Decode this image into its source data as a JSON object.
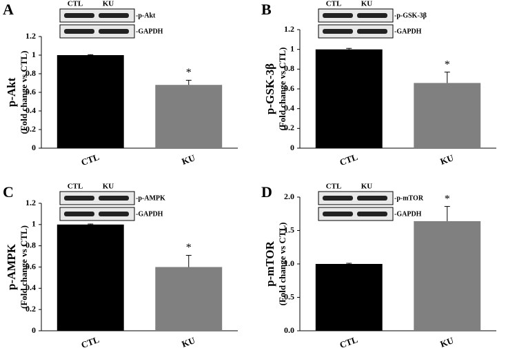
{
  "chart_data": [
    {
      "type": "bar",
      "panel": "A",
      "ylabel": "p-Akt",
      "ylabel_sub": "(Fold change vs CTL)",
      "categories": [
        "CTL",
        "KU"
      ],
      "values": [
        1.0,
        0.68
      ],
      "errors": [
        0.005,
        0.05
      ],
      "colors": [
        "#000000",
        "#808080"
      ],
      "ylim": [
        0,
        1.2
      ],
      "yticks": [
        0,
        0.2,
        0.4,
        0.6,
        0.8,
        1,
        1.2
      ],
      "annotations": [
        {
          "text": "*",
          "x": "KU"
        }
      ],
      "blot": {
        "lanes": [
          "CTL",
          "KU"
        ],
        "bands": [
          "-p-Akt",
          "-GAPDH"
        ]
      }
    },
    {
      "type": "bar",
      "panel": "B",
      "ylabel": "p-GSK-3β",
      "ylabel_sub": "(Fold change vs CTL)",
      "categories": [
        "CTL",
        "KU"
      ],
      "values": [
        1.0,
        0.66
      ],
      "errors": [
        0.01,
        0.11
      ],
      "colors": [
        "#000000",
        "#808080"
      ],
      "ylim": [
        0,
        1.2
      ],
      "yticks": [
        0,
        0.2,
        0.4,
        0.6,
        0.8,
        1,
        1.2
      ],
      "annotations": [
        {
          "text": "*",
          "x": "KU"
        }
      ],
      "blot": {
        "lanes": [
          "CTL",
          "KU"
        ],
        "bands": [
          "-p-GSK-3β",
          "-GAPDH"
        ]
      }
    },
    {
      "type": "bar",
      "panel": "C",
      "ylabel": "p-AMPK",
      "ylabel_sub": "(Fold change vs CTL)",
      "categories": [
        "CTL",
        "KU"
      ],
      "values": [
        1.0,
        0.6
      ],
      "errors": [
        0.005,
        0.11
      ],
      "colors": [
        "#000000",
        "#808080"
      ],
      "ylim": [
        0,
        1.2
      ],
      "yticks": [
        0,
        0.2,
        0.4,
        0.6,
        0.8,
        1,
        1.2
      ],
      "annotations": [
        {
          "text": "*",
          "x": "KU"
        }
      ],
      "blot": {
        "lanes": [
          "CTL",
          "KU"
        ],
        "bands": [
          "-p-AMPK",
          "-GAPDH"
        ]
      }
    },
    {
      "type": "bar",
      "panel": "D",
      "ylabel": "p-mTOR",
      "ylabel_sub": "(Fold change vs CTL)",
      "categories": [
        "CTL",
        "KU"
      ],
      "values": [
        1.0,
        1.64
      ],
      "errors": [
        0.01,
        0.22
      ],
      "colors": [
        "#000000",
        "#808080"
      ],
      "ylim": [
        0,
        2.0
      ],
      "yticks": [
        {
          "value": 0,
          "label": "0.0"
        },
        {
          "value": 0.5,
          "label": "0.5"
        },
        {
          "value": 1.0,
          "label": "1.0"
        },
        {
          "value": 1.5,
          "label": "1.5"
        },
        {
          "value": 2.0,
          "label": "2.0"
        }
      ],
      "annotations": [
        {
          "text": "*",
          "x": "KU"
        }
      ],
      "blot": {
        "lanes": [
          "CTL",
          "KU"
        ],
        "bands": [
          "-p-mTOR",
          "-GAPDH"
        ]
      }
    }
  ]
}
